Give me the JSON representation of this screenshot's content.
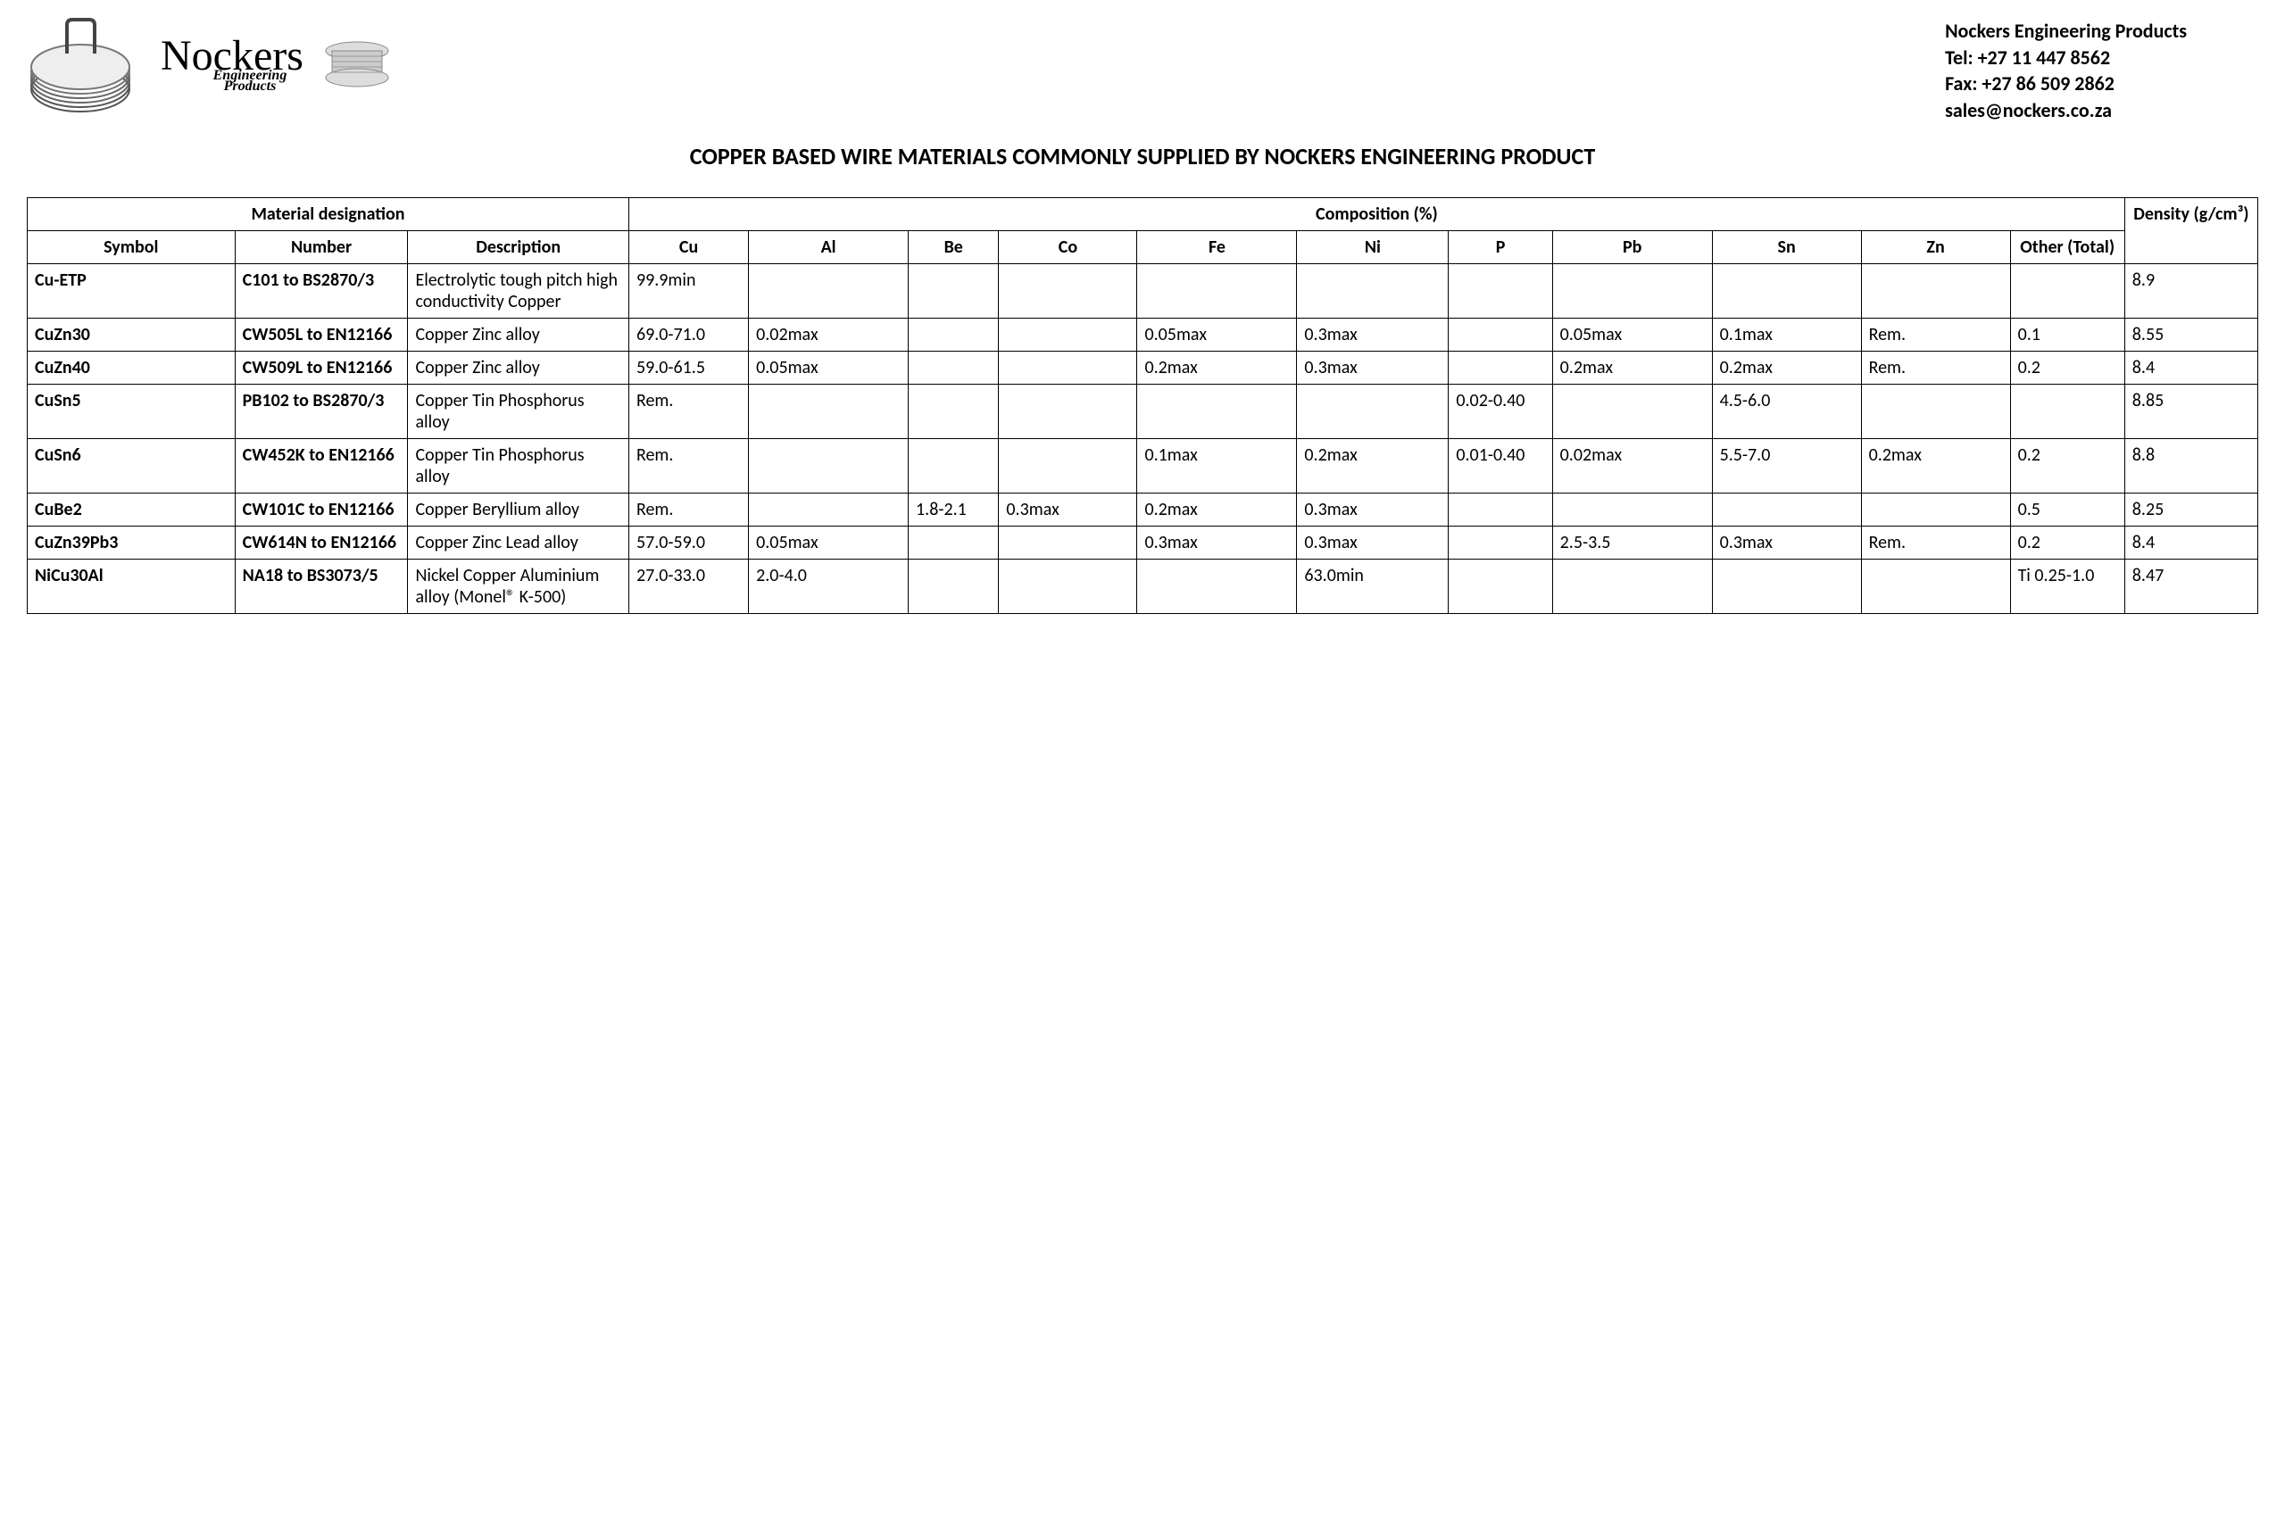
{
  "company": {
    "name": "Nockers",
    "sub1": "Engineering",
    "sub2": "Products",
    "contact_name": "Nockers Engineering Products",
    "tel": "Tel: +27 11 447 8562",
    "fax": "Fax: +27 86 509 2862",
    "email": "sales@nockers.co.za"
  },
  "doc_title": "COPPER BASED WIRE MATERIALS COMMONLY SUPPLIED BY NOCKERS ENGINEERING PRODUCT",
  "table": {
    "group_headers": {
      "material": "Material designation",
      "composition": "Composition (%)",
      "density": "Density (g/cm³)"
    },
    "columns": [
      "Symbol",
      "Number",
      "Description",
      "Cu",
      "Al",
      "Be",
      "Co",
      "Fe",
      "Ni",
      "P",
      "Pb",
      "Sn",
      "Zn",
      "Other (Total)"
    ],
    "rows": [
      {
        "symbol": "Cu-ETP",
        "number": "C101 to BS2870/3",
        "desc": "Electrolytic tough pitch high conductivity Copper",
        "cu": "99.9min",
        "al": "",
        "be": "",
        "co": "",
        "fe": "",
        "ni": "",
        "p": "",
        "pb": "",
        "sn": "",
        "zn": "",
        "other": "",
        "density": "8.9"
      },
      {
        "symbol": "CuZn30",
        "number": "CW505L to EN12166",
        "desc": "Copper Zinc alloy",
        "cu": "69.0-71.0",
        "al": "0.02max",
        "be": "",
        "co": "",
        "fe": "0.05max",
        "ni": "0.3max",
        "p": "",
        "pb": "0.05max",
        "sn": "0.1max",
        "zn": "Rem.",
        "other": "0.1",
        "density": "8.55"
      },
      {
        "symbol": "CuZn40",
        "number": "CW509L to EN12166",
        "desc": "Copper Zinc alloy",
        "cu": "59.0-61.5",
        "al": "0.05max",
        "be": "",
        "co": "",
        "fe": "0.2max",
        "ni": "0.3max",
        "p": "",
        "pb": "0.2max",
        "sn": "0.2max",
        "zn": "Rem.",
        "other": "0.2",
        "density": "8.4"
      },
      {
        "symbol": "CuSn5",
        "number": "PB102 to BS2870/3",
        "desc": "Copper Tin Phosphorus alloy",
        "cu": "Rem.",
        "al": "",
        "be": "",
        "co": "",
        "fe": "",
        "ni": "",
        "p": "0.02-0.40",
        "pb": "",
        "sn": "4.5-6.0",
        "zn": "",
        "other": "",
        "density": "8.85"
      },
      {
        "symbol": "CuSn6",
        "number": "CW452K to EN12166",
        "desc": "Copper Tin Phosphorus alloy",
        "cu": "Rem.",
        "al": "",
        "be": "",
        "co": "",
        "fe": "0.1max",
        "ni": "0.2max",
        "p": "0.01-0.40",
        "pb": "0.02max",
        "sn": "5.5-7.0",
        "zn": "0.2max",
        "other": "0.2",
        "density": "8.8"
      },
      {
        "symbol": "CuBe2",
        "number": "CW101C to EN12166",
        "desc": "Copper Beryllium alloy",
        "cu": "Rem.",
        "al": "",
        "be": "1.8-2.1",
        "co": "0.3max",
        "fe": "0.2max",
        "ni": "0.3max",
        "p": "",
        "pb": "",
        "sn": "",
        "zn": "",
        "other": "0.5",
        "density": "8.25"
      },
      {
        "symbol": "CuZn39Pb3",
        "number": "CW614N to EN12166",
        "desc": "Copper Zinc Lead alloy",
        "cu": "57.0-59.0",
        "al": "0.05max",
        "be": "",
        "co": "",
        "fe": "0.3max",
        "ni": "0.3max",
        "p": "",
        "pb": "2.5-3.5",
        "sn": "0.3max",
        "zn": "Rem.",
        "other": "0.2",
        "density": "8.4"
      },
      {
        "symbol": "NiCu30Al",
        "number": "NA18 to BS3073/5",
        "desc": "Nickel Copper Aluminium alloy (Monel® K-500)",
        "cu": "27.0-33.0",
        "al": "2.0-4.0",
        "be": "",
        "co": "",
        "fe": "",
        "ni": "63.0min",
        "p": "",
        "pb": "",
        "sn": "",
        "zn": "",
        "other": "Ti 0.25-1.0",
        "density": "8.47"
      }
    ]
  }
}
